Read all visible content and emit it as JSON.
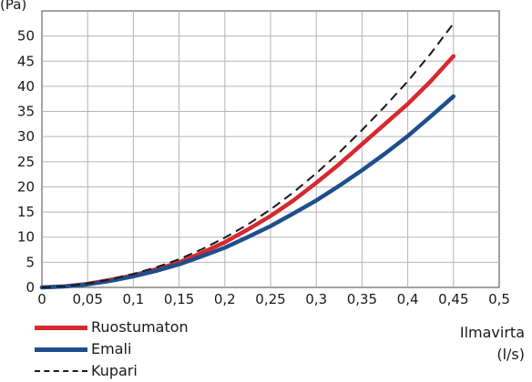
{
  "chart_data": {
    "type": "line",
    "title": "",
    "ylabel_partial": "(Pa)",
    "xlabel_line1": "Ilmavirta",
    "xlabel_line2": "(l/s)",
    "xlim": [
      0,
      0.5
    ],
    "ylim": [
      0,
      55
    ],
    "xticks": [
      "0",
      "0,05",
      "0,1",
      "0,15",
      "0,2",
      "0,25",
      "0,3",
      "0,35",
      "0,4",
      "0,45",
      "0,5"
    ],
    "yticks": [
      "0",
      "5",
      "10",
      "15",
      "20",
      "25",
      "30",
      "35",
      "40",
      "45",
      "50"
    ],
    "grid": true,
    "legend_position": "bottom-left",
    "x": [
      0,
      0.025,
      0.05,
      0.075,
      0.1,
      0.125,
      0.15,
      0.175,
      0.2,
      0.225,
      0.25,
      0.275,
      0.3,
      0.325,
      0.35,
      0.375,
      0.4,
      0.425,
      0.45
    ],
    "series": [
      {
        "name": "Ruostumaton",
        "color": "#d7282f",
        "style": "solid",
        "values": [
          0,
          0.2,
          0.7,
          1.5,
          2.4,
          3.6,
          5.0,
          6.9,
          9.0,
          11.5,
          14.2,
          17.3,
          20.8,
          24.5,
          28.5,
          32.5,
          36.5,
          41.0,
          46.0
        ]
      },
      {
        "name": "Emali",
        "color": "#1f4e8c",
        "style": "solid",
        "values": [
          0,
          0.2,
          0.6,
          1.3,
          2.2,
          3.3,
          4.6,
          6.2,
          7.9,
          10.0,
          12.2,
          14.7,
          17.3,
          20.2,
          23.3,
          26.6,
          30.1,
          34.0,
          38.0
        ]
      },
      {
        "name": "Kupari",
        "color": "#1a1a1a",
        "style": "dashed",
        "values": [
          0,
          0.2,
          0.8,
          1.6,
          2.7,
          4.0,
          5.6,
          7.6,
          9.9,
          12.5,
          15.5,
          18.9,
          22.7,
          26.8,
          31.3,
          36.0,
          41.0,
          46.5,
          52.5
        ]
      }
    ]
  }
}
